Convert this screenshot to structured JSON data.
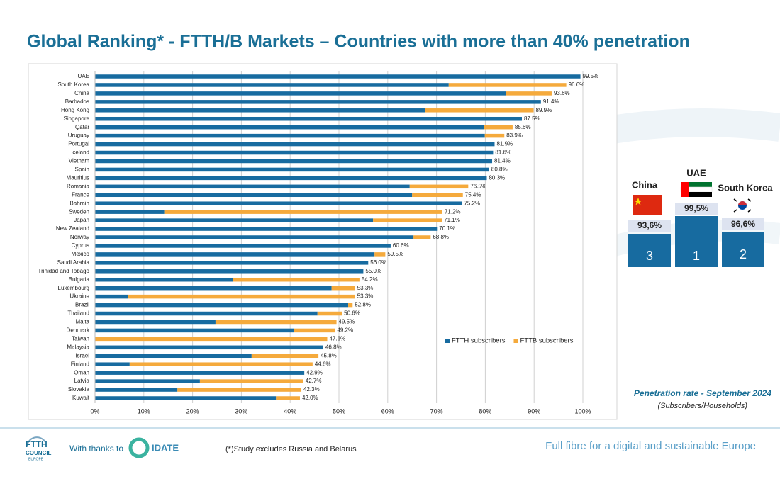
{
  "header": {
    "title": "Global Ranking* - FTTH/B Markets – Countries with more than 40% penetration"
  },
  "chart_data": {
    "type": "stacked-bar-horizontal",
    "categories": [
      "UAE",
      "South Korea",
      "China",
      "Barbados",
      "Hong Kong",
      "Singapore",
      "Qatar",
      "Uruguay",
      "Portugal",
      "Iceland",
      "Vietnam",
      "Spain",
      "Mauritius",
      "Romania",
      "France",
      "Bahrain",
      "Sweden",
      "Japan",
      "New Zealand",
      "Norway",
      "Cyprus",
      "Mexico",
      "Saudi Arabia",
      "Trinidad and Tobago",
      "Bulgaria",
      "Luxembourg",
      "Ukraine",
      "Brazil",
      "Thailand",
      "Malta",
      "Denmark",
      "Taiwan",
      "Malaysia",
      "Israel",
      "Finland",
      "Oman",
      "Latvia",
      "Slovakia",
      "Kuwait"
    ],
    "series": [
      {
        "name": "FTTH subscribers",
        "color": "#176ba0",
        "values": [
          99.5,
          72.5,
          84.3,
          91.4,
          67.6,
          87.5,
          79.8,
          79.9,
          81.9,
          81.6,
          81.4,
          80.8,
          80.3,
          64.5,
          65.0,
          75.2,
          14.2,
          57.0,
          70.1,
          65.3,
          60.6,
          57.3,
          56.0,
          55.0,
          28.2,
          48.5,
          6.8,
          51.9,
          45.6,
          24.7,
          40.8,
          0,
          46.8,
          32.1,
          7.1,
          42.9,
          21.5,
          16.9,
          37.1
        ]
      },
      {
        "name": "FTTB subscribers",
        "color": "#f5aa3c",
        "values": [
          0,
          24.1,
          9.3,
          0,
          22.3,
          0,
          5.8,
          4.0,
          0,
          0,
          0,
          0,
          0,
          12.0,
          10.4,
          0,
          57.0,
          14.1,
          0,
          3.5,
          0,
          2.2,
          0,
          0,
          26.0,
          4.8,
          46.5,
          0.9,
          5.0,
          24.8,
          8.4,
          47.6,
          0,
          13.7,
          37.5,
          0,
          21.2,
          25.4,
          4.9
        ]
      }
    ],
    "totals": {
      "values": [
        99.5,
        96.6,
        93.6,
        91.4,
        89.9,
        87.5,
        85.6,
        83.9,
        81.9,
        81.6,
        81.4,
        80.8,
        80.3,
        76.5,
        75.4,
        75.2,
        71.2,
        71.1,
        70.1,
        68.8,
        60.6,
        59.5,
        56.0,
        55.0,
        54.2,
        53.3,
        53.3,
        52.8,
        50.6,
        49.5,
        49.2,
        47.6,
        46.8,
        45.8,
        44.6,
        42.9,
        42.7,
        42.3,
        42.0
      ],
      "value_labels": [
        "99.5%",
        "96.6%",
        "93.6%",
        "91.4%",
        "89.9%",
        "87.5%",
        "85.6%",
        "83.9%",
        "81.9%",
        "81.6%",
        "81.4%",
        "80.8%",
        "80.3%",
        "76.5%",
        "75.4%",
        "75.2%",
        "71.2%",
        "71.1%",
        "70.1%",
        "68.8%",
        "60.6%",
        "59.5%",
        "56.0%",
        "55.0%",
        "54.2%",
        "53.3%",
        "53.3%",
        "52.8%",
        "50.6%",
        "49.5%",
        "49.2%",
        "47.6%",
        "46.8%",
        "45.8%",
        "44.6%",
        "42.9%",
        "42.7%",
        "42.3%",
        "42.0%"
      ]
    },
    "xlim": [
      0,
      100
    ],
    "xticks": [
      {
        "value": 0,
        "label": "0%"
      },
      {
        "value": 10,
        "label": "10%"
      },
      {
        "value": 20,
        "label": "20%"
      },
      {
        "value": 30,
        "label": "30%"
      },
      {
        "value": 40,
        "label": "40%"
      },
      {
        "value": 50,
        "label": "50%"
      },
      {
        "value": 60,
        "label": "60%"
      },
      {
        "value": 70,
        "label": "70%"
      },
      {
        "value": 80,
        "label": "80%"
      },
      {
        "value": 90,
        "label": "90%"
      },
      {
        "value": 100,
        "label": "100%"
      }
    ],
    "grid": true,
    "legend": "right"
  },
  "podium": [
    {
      "country": "China",
      "rate": "93,6%",
      "rank": "3"
    },
    {
      "country": "UAE",
      "rate": "99,5%",
      "rank": "1"
    },
    {
      "country": "South Korea",
      "rate": "96,6%",
      "rank": "2"
    }
  ],
  "caption": {
    "line1": "Penetration rate - September 2024",
    "line2": "(Subscribers/Households)"
  },
  "footer": {
    "logo_line1": "FTTH",
    "logo_line2": "COUNCIL",
    "logo_line3": "EUROPE",
    "thanks": "With thanks to",
    "partner": "IDATE",
    "note": "(*)Study excludes Russia and Belarus",
    "slogan": "Full fibre for a digital and sustainable Europe"
  }
}
